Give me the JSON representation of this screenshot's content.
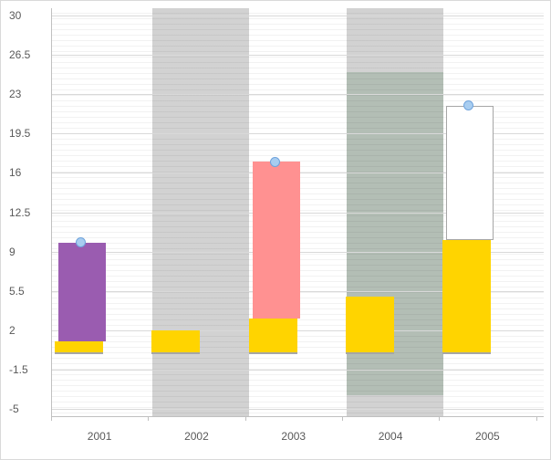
{
  "chart": {
    "title": "",
    "background": "#ffffff",
    "border_color": "#d9d9d9"
  },
  "chart_data": {
    "type": "bar",
    "subtype": "combo-column-scatter-with-background-bands",
    "title": "",
    "xlabel": "",
    "ylabel": "",
    "legend": "none",
    "categories": [
      "2001",
      "2002",
      "2003",
      "2004",
      "2005"
    ],
    "y_axis": {
      "min": -5,
      "max": 30,
      "major_unit": 3.5,
      "tick_labels": [
        "30",
        "26.5",
        "23",
        "19.5",
        "16",
        "12.5",
        "9",
        "5.5",
        "2",
        "-1.5",
        "-5"
      ],
      "label_color": "#595959"
    },
    "gridlines": {
      "major": true,
      "minor": true,
      "major_color": "#d9d9d9"
    },
    "series": [
      {
        "name": "gray-background-band",
        "type": "full-band",
        "color": "#d2d2d2",
        "present": [
          false,
          true,
          false,
          true,
          false
        ]
      },
      {
        "name": "green-range-column",
        "type": "range-band",
        "color": "rgba(143,166,147,0.45)",
        "ranges": [
          null,
          null,
          null,
          [
            -3.8,
            25
          ],
          null
        ]
      },
      {
        "name": "yellow-column",
        "type": "column",
        "color": "#ffd400",
        "base": 0,
        "values": [
          1,
          2,
          3,
          5,
          10
        ]
      },
      {
        "name": "purple-floating-column",
        "type": "floating-column",
        "color": "#9a5cb0",
        "ranges": [
          [
            1,
            9.8
          ],
          null,
          null,
          null,
          null
        ]
      },
      {
        "name": "pink-floating-column",
        "type": "floating-column",
        "color": "#ff9191",
        "ranges": [
          null,
          null,
          [
            3,
            17
          ],
          null,
          null
        ]
      },
      {
        "name": "white-floating-column",
        "type": "floating-column",
        "color": "#ffffff",
        "border_color": "#a6a6a6",
        "ranges": [
          null,
          null,
          null,
          null,
          [
            10,
            22
          ]
        ]
      },
      {
        "name": "blue-circle-markers",
        "type": "scatter",
        "fill": "#a8cdf0",
        "stroke": "#6fa3dc",
        "values": [
          9.8,
          null,
          17,
          null,
          22
        ]
      }
    ]
  }
}
